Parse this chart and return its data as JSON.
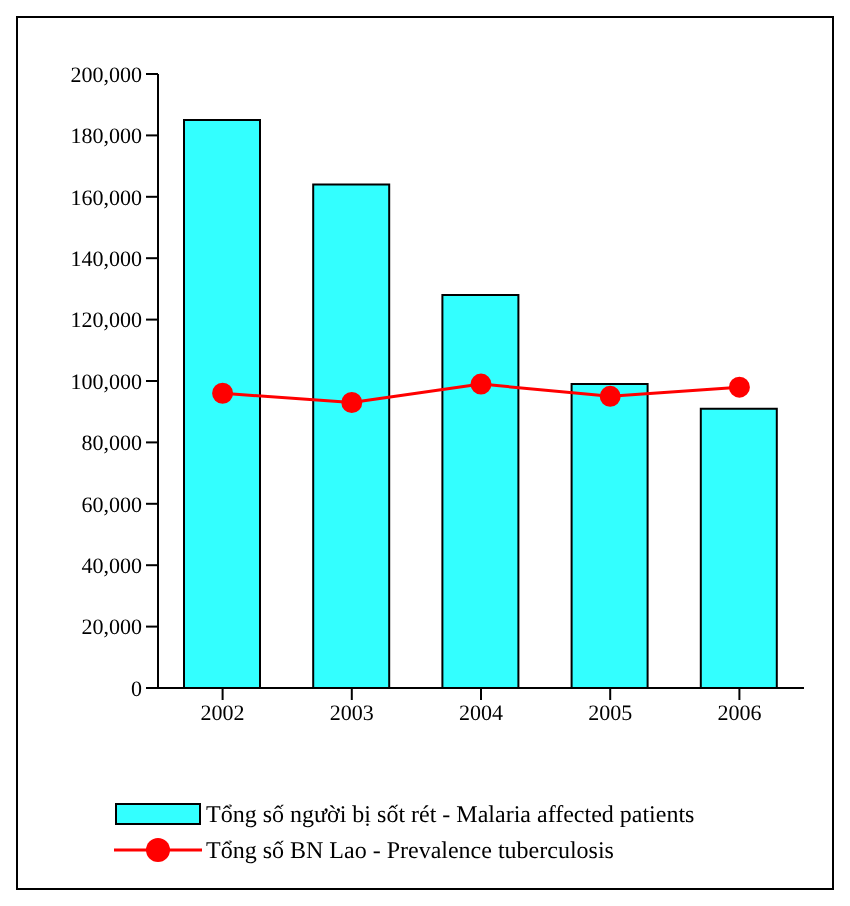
{
  "chart_data": {
    "type": "bar",
    "categories": [
      "2002",
      "2003",
      "2004",
      "2005",
      "2006"
    ],
    "series": [
      {
        "name": "Tổng số người bị sốt rét - Malaria affected patients",
        "color": "#33ffff",
        "values": [
          185000,
          164000,
          128000,
          99000,
          91000
        ]
      },
      {
        "name": "Tổng số BN Lao - Prevalence tuberculosis",
        "type": "line",
        "color": "#ff0000",
        "values": [
          96000,
          93000,
          99000,
          95000,
          98000
        ]
      }
    ],
    "ylim": [
      0,
      200000
    ],
    "yticks": [
      0,
      {
        "value": 20000,
        "label": "20,000"
      },
      {
        "value": 40000,
        "label": "40,000"
      },
      {
        "value": 60000,
        "label": "60,000"
      },
      {
        "value": 80000,
        "label": "80,000"
      },
      {
        "value": 100000,
        "label": "100,000"
      },
      {
        "value": 120000,
        "label": "120,000"
      },
      {
        "value": 140000,
        "label": "140,000"
      },
      {
        "value": 160000,
        "label": "160,000"
      },
      {
        "value": 180000,
        "label": "180,000"
      },
      {
        "value": 200000,
        "label": "200,000"
      }
    ],
    "grid": false,
    "legend": "bottom",
    "marker": "circle",
    "line_style": "solid"
  }
}
